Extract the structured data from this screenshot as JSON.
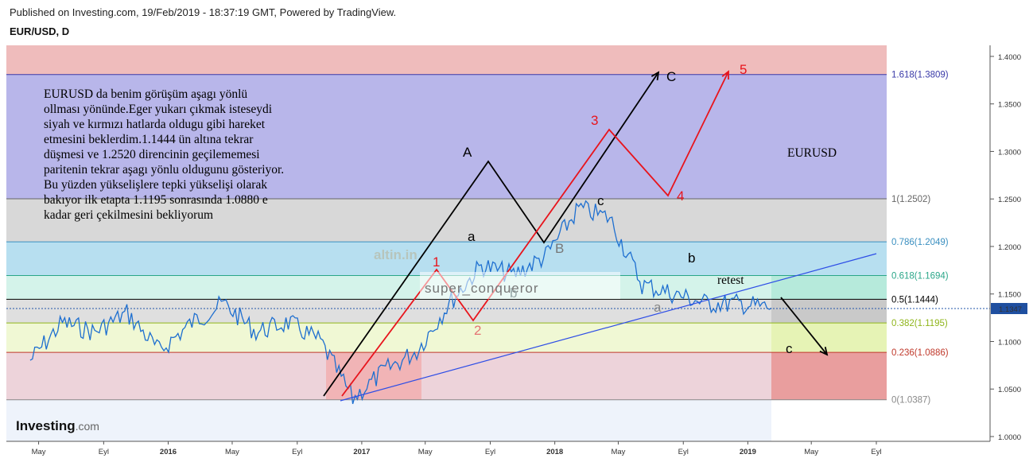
{
  "header": {
    "published": "Published on Investing.com, 19/Feb/2019 - 18:37:19 GMT, Powered by TradingView.",
    "symbol": "EUR/USD, D"
  },
  "chart_data": {
    "type": "line",
    "title": "EUR/USD, D",
    "ylim": [
      1.0,
      1.4
    ],
    "y_ticks": [
      "1.4000",
      "1.3500",
      "1.3000",
      "1.2500",
      "1.2000",
      "1.1500",
      "1.1000",
      "1.0500",
      "1.0000"
    ],
    "x_ticks": [
      "May",
      "Eyl",
      "2016",
      "May",
      "Eyl",
      "2017",
      "May",
      "Eyl",
      "2018",
      "May",
      "Eyl",
      "2019",
      "May",
      "Eyl"
    ],
    "current_price": "1.1347",
    "series": [
      {
        "x": [
          "2015-04",
          "2015-06",
          "2015-08",
          "2015-10",
          "2015-12",
          "2016-02",
          "2016-04",
          "2016-06",
          "2016-08",
          "2016-10",
          "2016-12",
          "2017-02",
          "2017-04",
          "2017-06",
          "2017-08",
          "2017-10",
          "2017-12",
          "2018-02",
          "2018-04",
          "2018-06",
          "2018-08",
          "2018-10",
          "2018-12",
          "2019-02"
        ],
        "values": [
          1.08,
          1.12,
          1.11,
          1.13,
          1.09,
          1.12,
          1.14,
          1.11,
          1.12,
          1.1,
          1.04,
          1.07,
          1.09,
          1.14,
          1.18,
          1.17,
          1.19,
          1.24,
          1.23,
          1.16,
          1.15,
          1.14,
          1.14,
          1.135
        ]
      }
    ],
    "fib_levels": [
      {
        "label": "1.618(1.3809)",
        "value": 1.3809,
        "color": "#3a3aa8"
      },
      {
        "label": "1(1.2502)",
        "value": 1.2502,
        "color": "#666666"
      },
      {
        "label": "0.786(1.2049)",
        "value": 1.2049,
        "color": "#3a8fc0"
      },
      {
        "label": "0.618(1.1694)",
        "value": 1.1694,
        "color": "#2aa688"
      },
      {
        "label": "0.5(1.1444)",
        "value": 1.1444,
        "color": "#000000"
      },
      {
        "label": "0.382(1.1195)",
        "value": 1.1195,
        "color": "#8fb51a"
      },
      {
        "label": "0.236(1.0886)",
        "value": 1.0886,
        "color": "#c0392b"
      },
      {
        "label": "0(1.0387)",
        "value": 1.0387,
        "color": "#888888"
      }
    ],
    "annotations": {
      "note_lines": [
        "EURUSD da benim görüşüm aşagı yönlü",
        "ollması yönünde.Eger yukarı çıkmak isteseydi",
        "siyah ve kırmızı hatlarda oldugu gibi hareket",
        "etmesini beklerdim.1.1444 ün altına tekrar",
        "düşmesi ve 1.2520 direncinin geçilememesi",
        "paritenin tekrar aşagı yönlu oldugunu gösteriyor.",
        "Bu yüzden yükselişlere tepki yükselişi olarak",
        "bakıyor ilk etapta 1.1195 sonrasında 1.0880 e",
        "kadar geri çekilmesini bekliyorum"
      ],
      "eurusd_label": "EURUSD",
      "retest": "retest",
      "watermark_user": "super_conqueror",
      "watermark_logo": "altin.in",
      "logo": "Investing.com",
      "black_waves": [
        "A",
        "B",
        "C"
      ],
      "red_waves": [
        "1",
        "2",
        "3",
        "4",
        "5"
      ],
      "small_waves": [
        "a",
        "b",
        "c",
        "a",
        "b",
        "c"
      ]
    }
  }
}
